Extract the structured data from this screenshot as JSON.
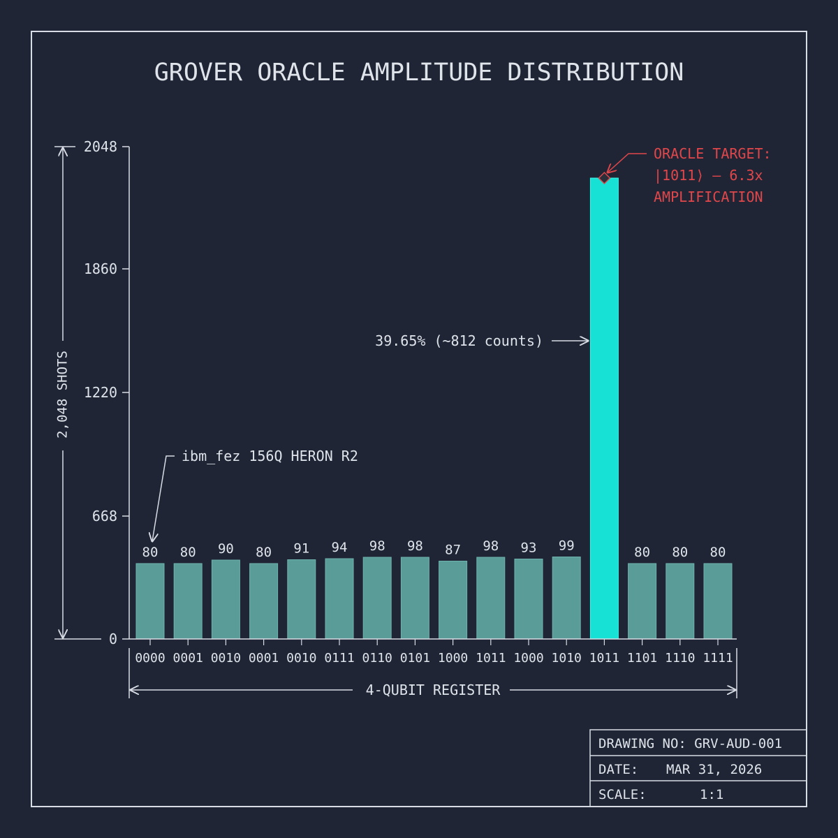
{
  "chart_data": {
    "type": "bar",
    "title": "GROVER ORACLE AMPLITUDE DISTRIBUTION",
    "ylabel": "2,048 SHOTS",
    "xlabel": "4-QUBIT REGISTER",
    "y_ticks": [
      "2048",
      "1860",
      "1220",
      "668",
      "0"
    ],
    "categories": [
      "0000",
      "0001",
      "0010",
      "0001",
      "0010",
      "0111",
      "0110",
      "0101",
      "1000",
      "1011",
      "1000",
      "1010",
      "1011",
      "1101",
      "1110",
      "1111"
    ],
    "values": [
      80,
      80,
      90,
      80,
      91,
      94,
      98,
      98,
      87,
      98,
      93,
      99,
      812,
      80,
      80,
      80
    ],
    "value_labels": [
      "80",
      "80",
      "90",
      "80",
      "91",
      "94",
      "98",
      "98",
      "87",
      "98",
      "93",
      "99",
      "",
      "80",
      "80",
      "80"
    ],
    "highlight_index": 12,
    "colors": {
      "background": "#1f2535",
      "bar": "#5a9c98",
      "bar_highlight": "#17e0d4",
      "line": "#d8dce4",
      "annotation_red": "#e0474b"
    },
    "annotations": {
      "hardware": "ibm_fez 156Q HERON R2",
      "percent": "39.65% (~812 counts)",
      "oracle_line1": "ORACLE TARGET:",
      "oracle_line2": "|1011⟩ — 6.3x",
      "oracle_line3": "AMPLIFICATION"
    }
  },
  "title_block": {
    "drawing_no": "DRAWING NO: GRV-AUD-001",
    "date_label": "DATE:",
    "date_value": "MAR 31, 2026",
    "scale_label": "SCALE:",
    "scale_value": "1:1"
  }
}
